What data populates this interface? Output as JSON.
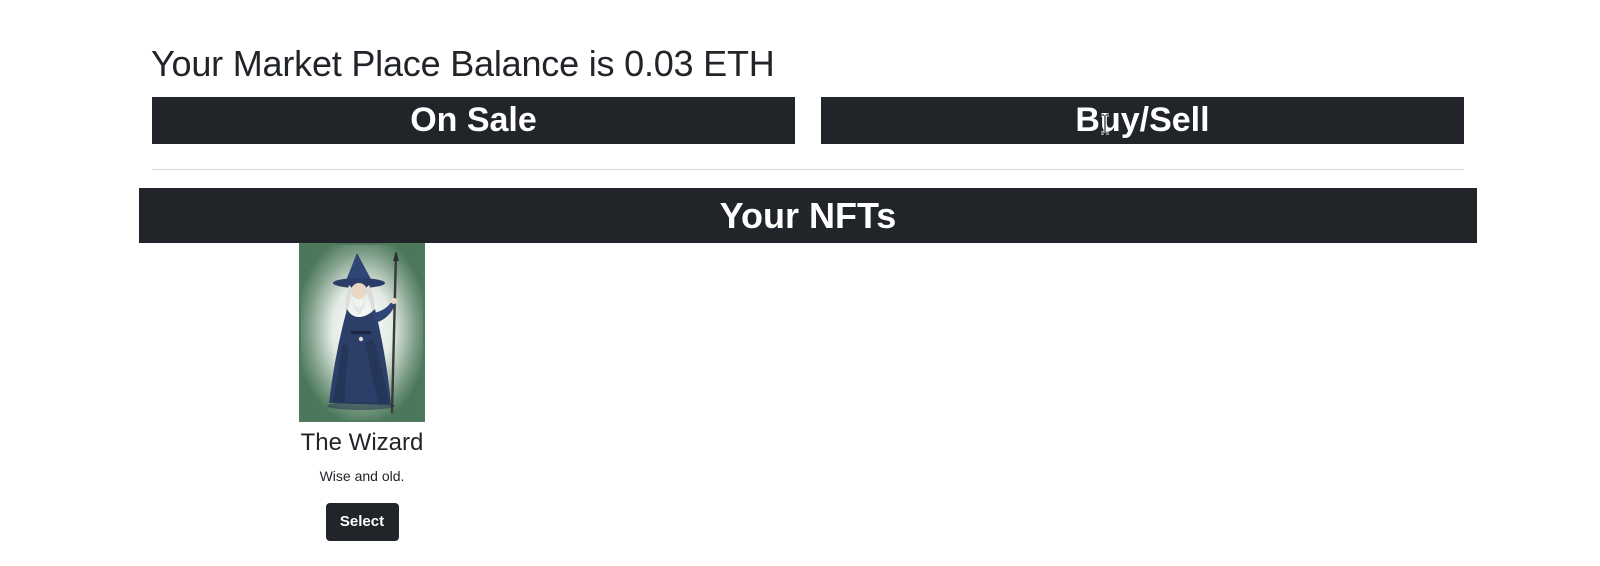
{
  "balance": {
    "text": "Your Market Place Balance is 0.03 ETH"
  },
  "tabs": {
    "on_sale_label": "On Sale",
    "buy_sell_label": "Buy/Sell"
  },
  "nfts_section": {
    "title": "Your NFTs",
    "items": [
      {
        "name": "The Wizard",
        "description": "Wise and old.",
        "button_label": "Select",
        "image_icon": "wizard-icon"
      }
    ]
  },
  "colors": {
    "dark": "#212529",
    "card_background": "#4f7a5e",
    "wizard_robe": "#2c3f68"
  }
}
